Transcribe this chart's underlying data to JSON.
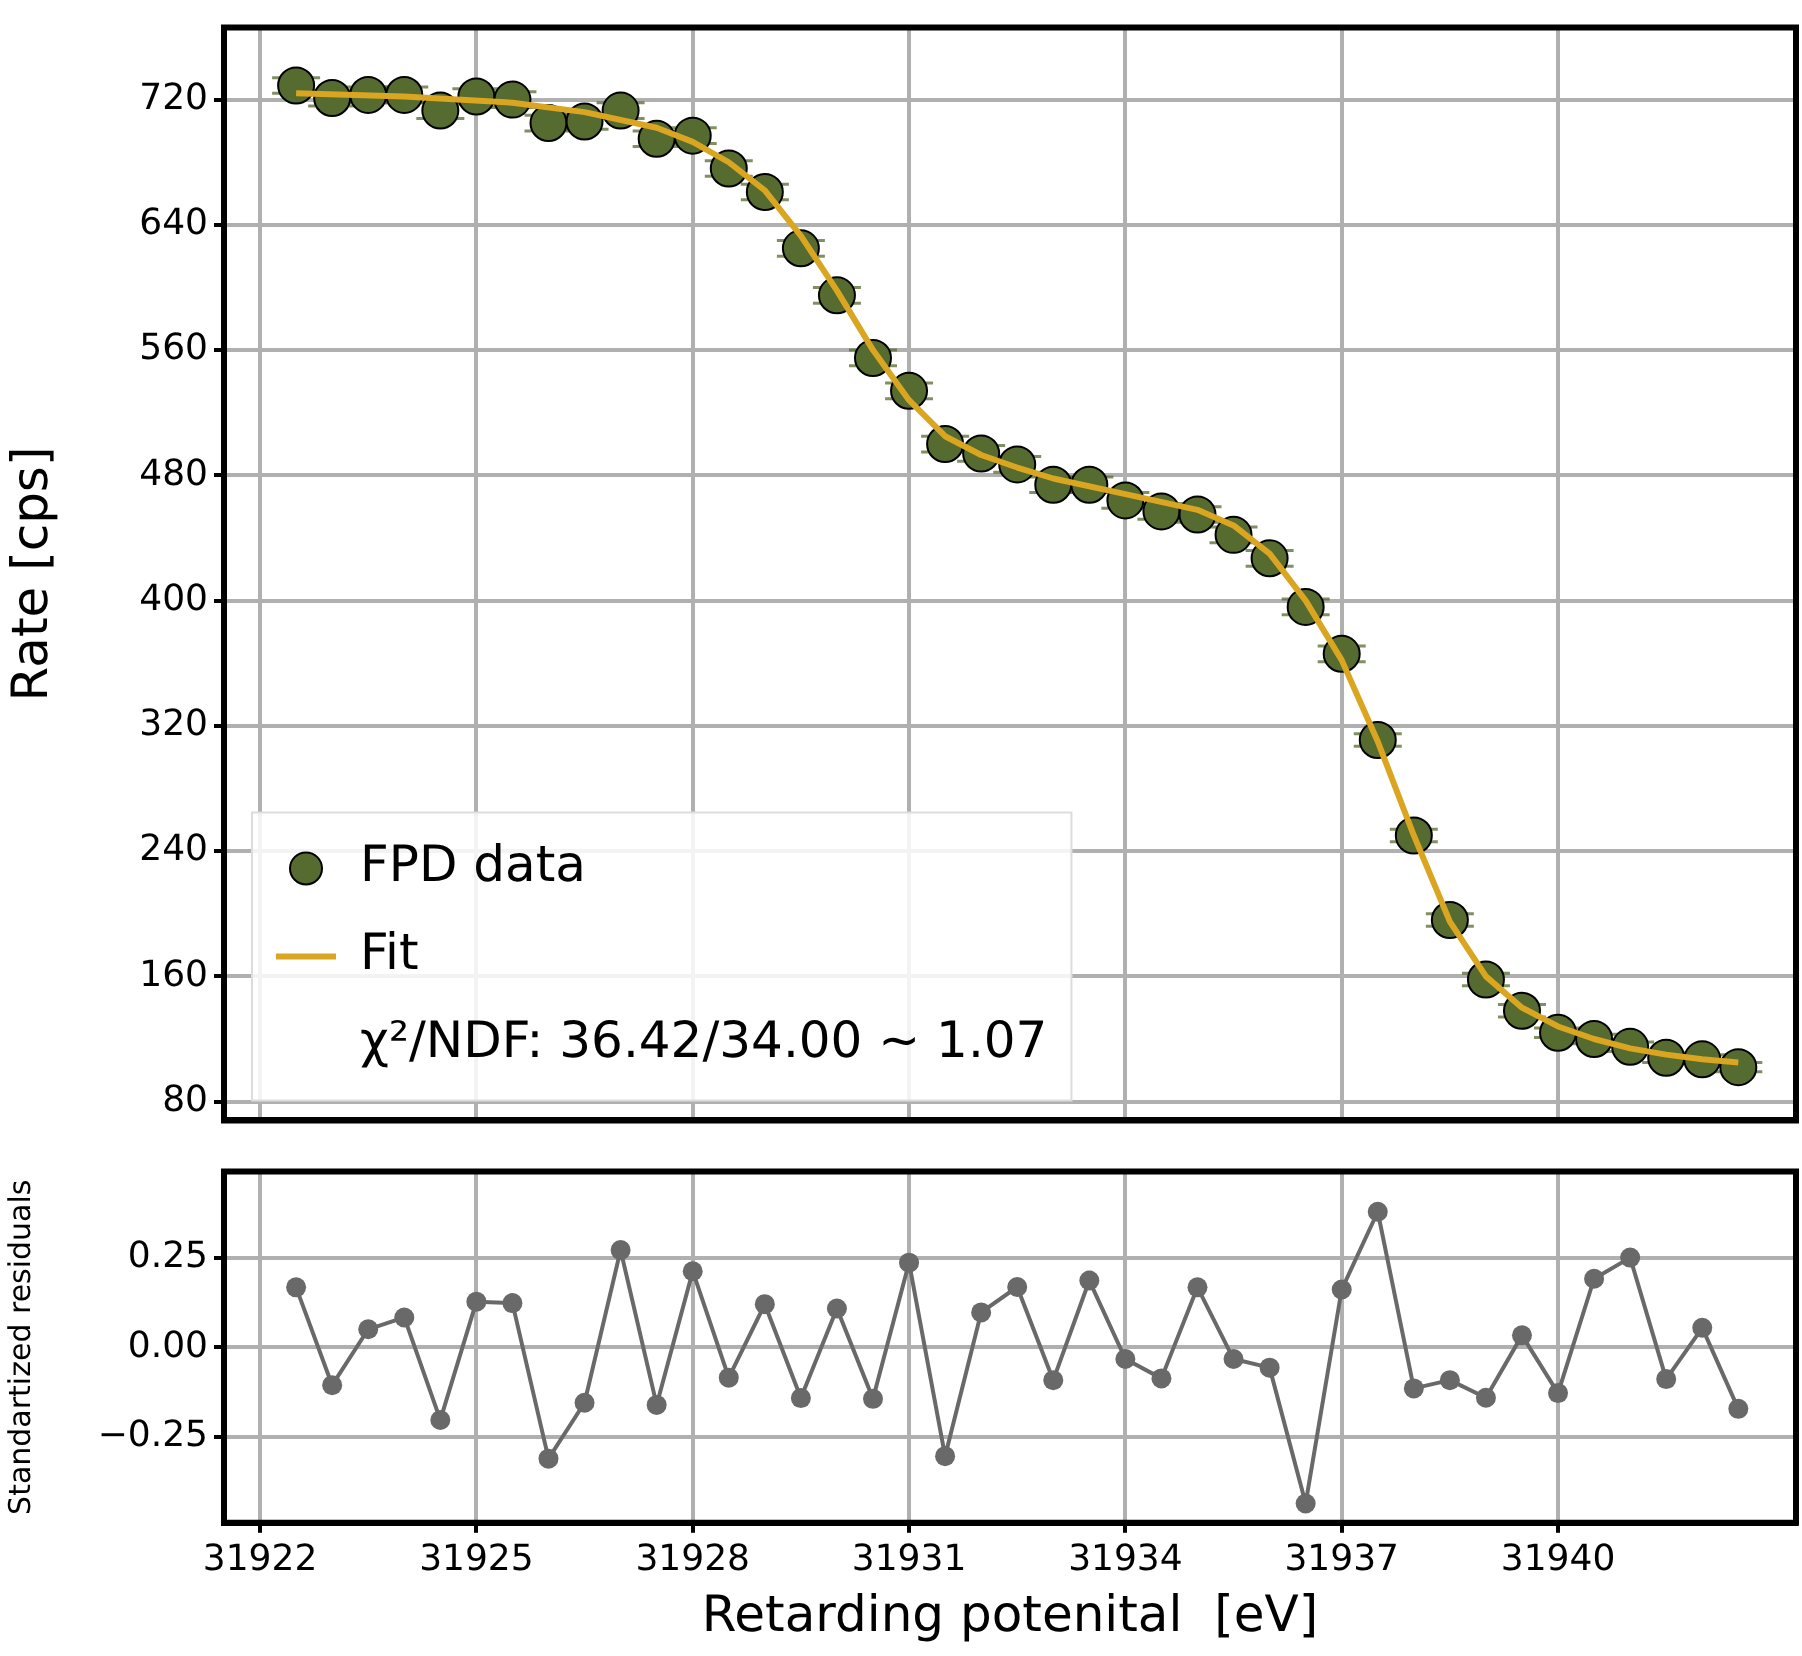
{
  "chart_data": [
    {
      "type": "scatter",
      "ylabel": "Rate [cps]",
      "xlim": [
        31921.5,
        31943.3
      ],
      "xticks": [
        31922,
        31925,
        31928,
        31931,
        31934,
        31937,
        31940
      ],
      "ylim": [
        68,
        766
      ],
      "yticks": [
        80,
        160,
        240,
        320,
        400,
        480,
        560,
        640,
        720
      ],
      "tick_labels": "y",
      "grid": true,
      "legend": "bottom left",
      "marker": "circle",
      "annotations": [
        "χ²/NDF: 36.42/34.00 ∼ 1.07"
      ],
      "x": [
        31922.5,
        31923,
        31923.5,
        31924,
        31924.5,
        31925,
        31925.5,
        31926,
        31926.5,
        31927,
        31927.5,
        31928,
        31928.5,
        31929,
        31929.5,
        31930,
        31930.5,
        31931,
        31931.5,
        31932,
        31932.5,
        31933,
        31933.5,
        31934,
        31934.5,
        31935,
        31935.5,
        31936,
        31936.5,
        31937,
        31937.5,
        31938,
        31938.5,
        31939,
        31939.5,
        31940,
        31940.5,
        31941,
        31941.5,
        31942,
        31942.5
      ],
      "series": [
        {
          "name": "FPD data",
          "type": "scatter",
          "color": "#556b2f",
          "values": [
            729,
            721,
            723,
            723,
            713,
            722,
            720,
            705,
            706,
            713,
            695,
            697,
            676,
            661,
            625,
            595,
            555,
            534,
            500,
            494,
            487,
            474,
            474,
            464,
            457,
            455,
            442,
            427,
            396,
            366,
            311,
            250,
            196,
            158,
            138,
            124,
            120,
            115,
            108,
            107,
            102
          ],
          "errors": [
            5,
            5,
            5,
            5,
            5,
            5,
            5,
            5,
            5,
            5,
            5,
            5,
            5,
            5,
            5,
            5,
            5,
            5,
            5,
            5,
            5,
            5,
            5,
            5,
            5,
            5,
            5,
            5,
            5,
            5,
            4,
            4,
            4,
            4,
            4,
            3,
            3,
            3,
            3,
            3,
            3
          ]
        },
        {
          "name": "Fit",
          "type": "line",
          "color": "#daa520",
          "marker": "none",
          "x": [
            31922.5,
            31924,
            31925.5,
            31926.5,
            31927.5,
            31928,
            31928.5,
            31929,
            31929.5,
            31930,
            31930.5,
            31931,
            31931.5,
            31932,
            31932.5,
            31933,
            31934,
            31935,
            31935.5,
            31936,
            31936.5,
            31937,
            31937.5,
            31938,
            31938.5,
            31939,
            31939.5,
            31940,
            31940.5,
            31941,
            31941.5,
            31942,
            31942.5
          ],
          "values": [
            724,
            722,
            718,
            712,
            702,
            693,
            680,
            662,
            633,
            598,
            560,
            528,
            505,
            493,
            485,
            478,
            468,
            458,
            448,
            430,
            400,
            362,
            310,
            250,
            195,
            160,
            140,
            128,
            120,
            114,
            110,
            107,
            105
          ]
        }
      ]
    },
    {
      "type": "line",
      "xlabel": "Retarding potenital  [eV]",
      "ylabel": "Standartized residuals",
      "xlim": [
        31921.5,
        31943.3
      ],
      "xticks": [
        31922,
        31925,
        31928,
        31931,
        31934,
        31937,
        31940
      ],
      "ylim": [
        -0.49,
        0.49
      ],
      "yticks": [
        {
          "value": -0.25,
          "label": "−0.25"
        },
        {
          "value": 0,
          "label": "0.00"
        },
        0.25
      ],
      "grid": true,
      "marker": "circle",
      "x": [
        31922.5,
        31923,
        31923.5,
        31924,
        31924.5,
        31925,
        31925.5,
        31926,
        31926.5,
        31927,
        31927.5,
        31928,
        31928.5,
        31929,
        31929.5,
        31930,
        31930.5,
        31931,
        31931.5,
        31932,
        31932.5,
        31933,
        31933.5,
        31934,
        31934.5,
        31935,
        31935.5,
        31936,
        31936.5,
        31937,
        31937.5,
        31938,
        31938.5,
        31939,
        31939.5,
        31940,
        31940.5,
        31941,
        31941.5,
        31942,
        31942.5
      ],
      "series": [
        {
          "color": "#696969",
          "values": [
            0.167,
            -0.106,
            0.05,
            0.083,
            -0.203,
            0.127,
            0.123,
            -0.311,
            -0.155,
            0.271,
            -0.161,
            0.212,
            -0.085,
            0.12,
            -0.142,
            0.108,
            -0.144,
            0.236,
            -0.304,
            0.097,
            0.168,
            -0.092,
            0.186,
            -0.033,
            -0.087,
            0.167,
            -0.033,
            -0.057,
            -0.436,
            0.161,
            0.378,
            -0.115,
            -0.092,
            -0.141,
            0.033,
            -0.128,
            0.191,
            0.25,
            -0.089,
            0.054,
            -0.172
          ]
        }
      ]
    }
  ]
}
